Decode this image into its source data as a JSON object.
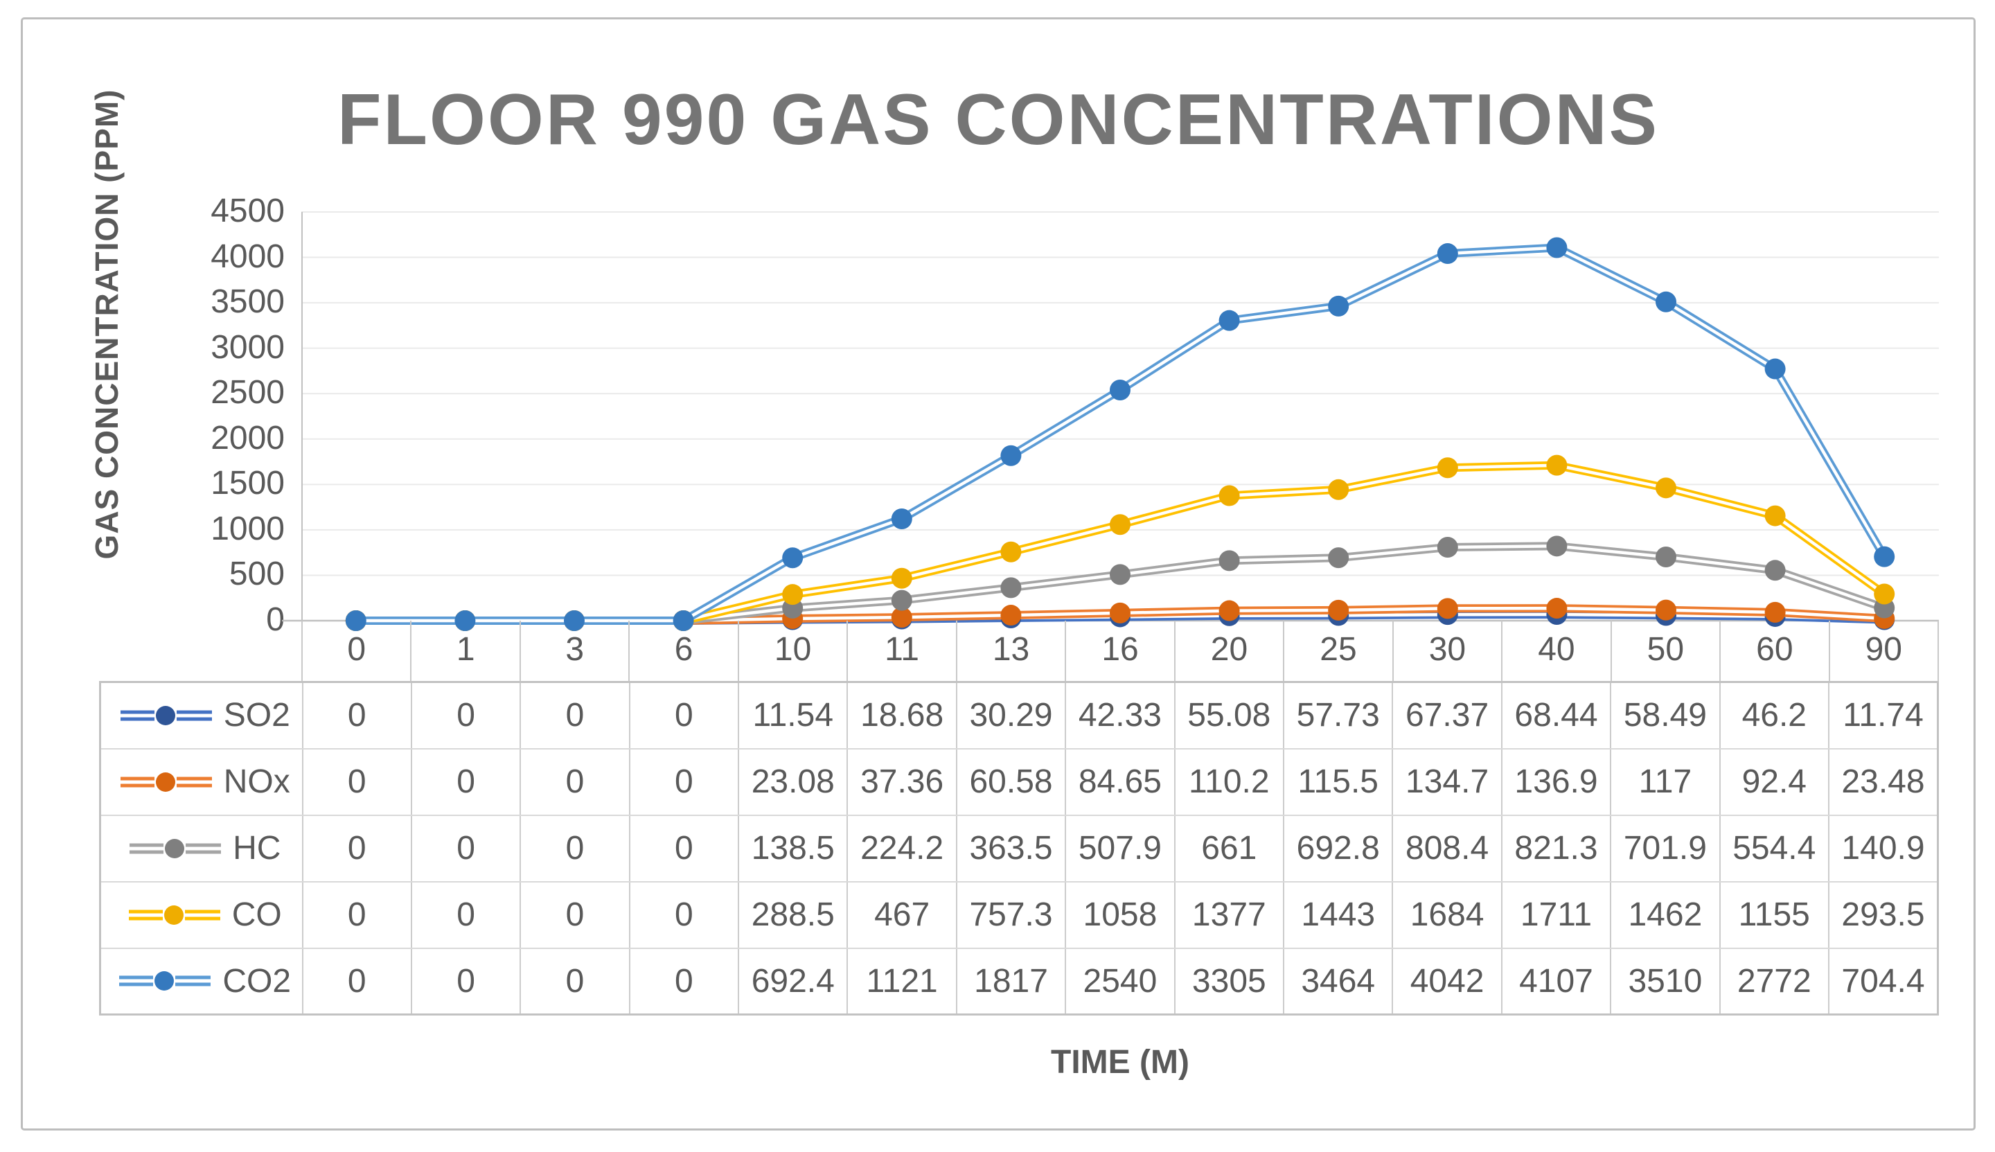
{
  "chart_data": {
    "type": "line",
    "title": "FLOOR 990 GAS CONCENTRATIONS",
    "xlabel": "TIME (M)",
    "ylabel": "GAS CONCENTRATION (PPM)",
    "categories": [
      "0",
      "1",
      "3",
      "6",
      "10",
      "11",
      "13",
      "16",
      "20",
      "25",
      "30",
      "40",
      "50",
      "60",
      "90"
    ],
    "ylim": [
      0,
      4500
    ],
    "yticks": [
      0,
      500,
      1000,
      1500,
      2000,
      2500,
      3000,
      3500,
      4000,
      4500
    ],
    "grid": "horizontal gridlines only",
    "legend_position": "left column of data table below plot",
    "line_style": "double line with filled circle markers",
    "gridline_color": "#eaeaea",
    "axis_line_color": "#c0c0c0",
    "series": [
      {
        "name": "SO2",
        "line_color": "#4472C4",
        "marker_color": "#2F5597",
        "values": [
          0,
          0,
          0,
          0,
          11.54,
          18.68,
          30.29,
          42.33,
          55.08,
          57.73,
          67.37,
          68.44,
          58.49,
          46.2,
          11.74
        ]
      },
      {
        "name": "NOx",
        "line_color": "#ED7D31",
        "marker_color": "#D9650F",
        "values": [
          0,
          0,
          0,
          0,
          23.08,
          37.36,
          60.58,
          84.65,
          110.2,
          115.5,
          134.7,
          136.9,
          117,
          92.4,
          23.48
        ]
      },
      {
        "name": "HC",
        "line_color": "#A5A5A5",
        "marker_color": "#7F7F7F",
        "values": [
          0,
          0,
          0,
          0,
          138.5,
          224.2,
          363.5,
          507.9,
          661,
          692.8,
          808.4,
          821.3,
          701.9,
          554.4,
          140.9
        ]
      },
      {
        "name": "CO",
        "line_color": "#FFC000",
        "marker_color": "#EFAD00",
        "values": [
          0,
          0,
          0,
          0,
          288.5,
          467,
          757.3,
          1058,
          1377,
          1443,
          1684,
          1711,
          1462,
          1155,
          293.5
        ]
      },
      {
        "name": "CO2",
        "line_color": "#5B9BD5",
        "marker_color": "#3579BE",
        "values": [
          0,
          0,
          0,
          0,
          692.4,
          1121,
          1817,
          2540,
          3305,
          3464,
          4042,
          4107,
          3510,
          2772,
          704.4
        ]
      }
    ]
  }
}
